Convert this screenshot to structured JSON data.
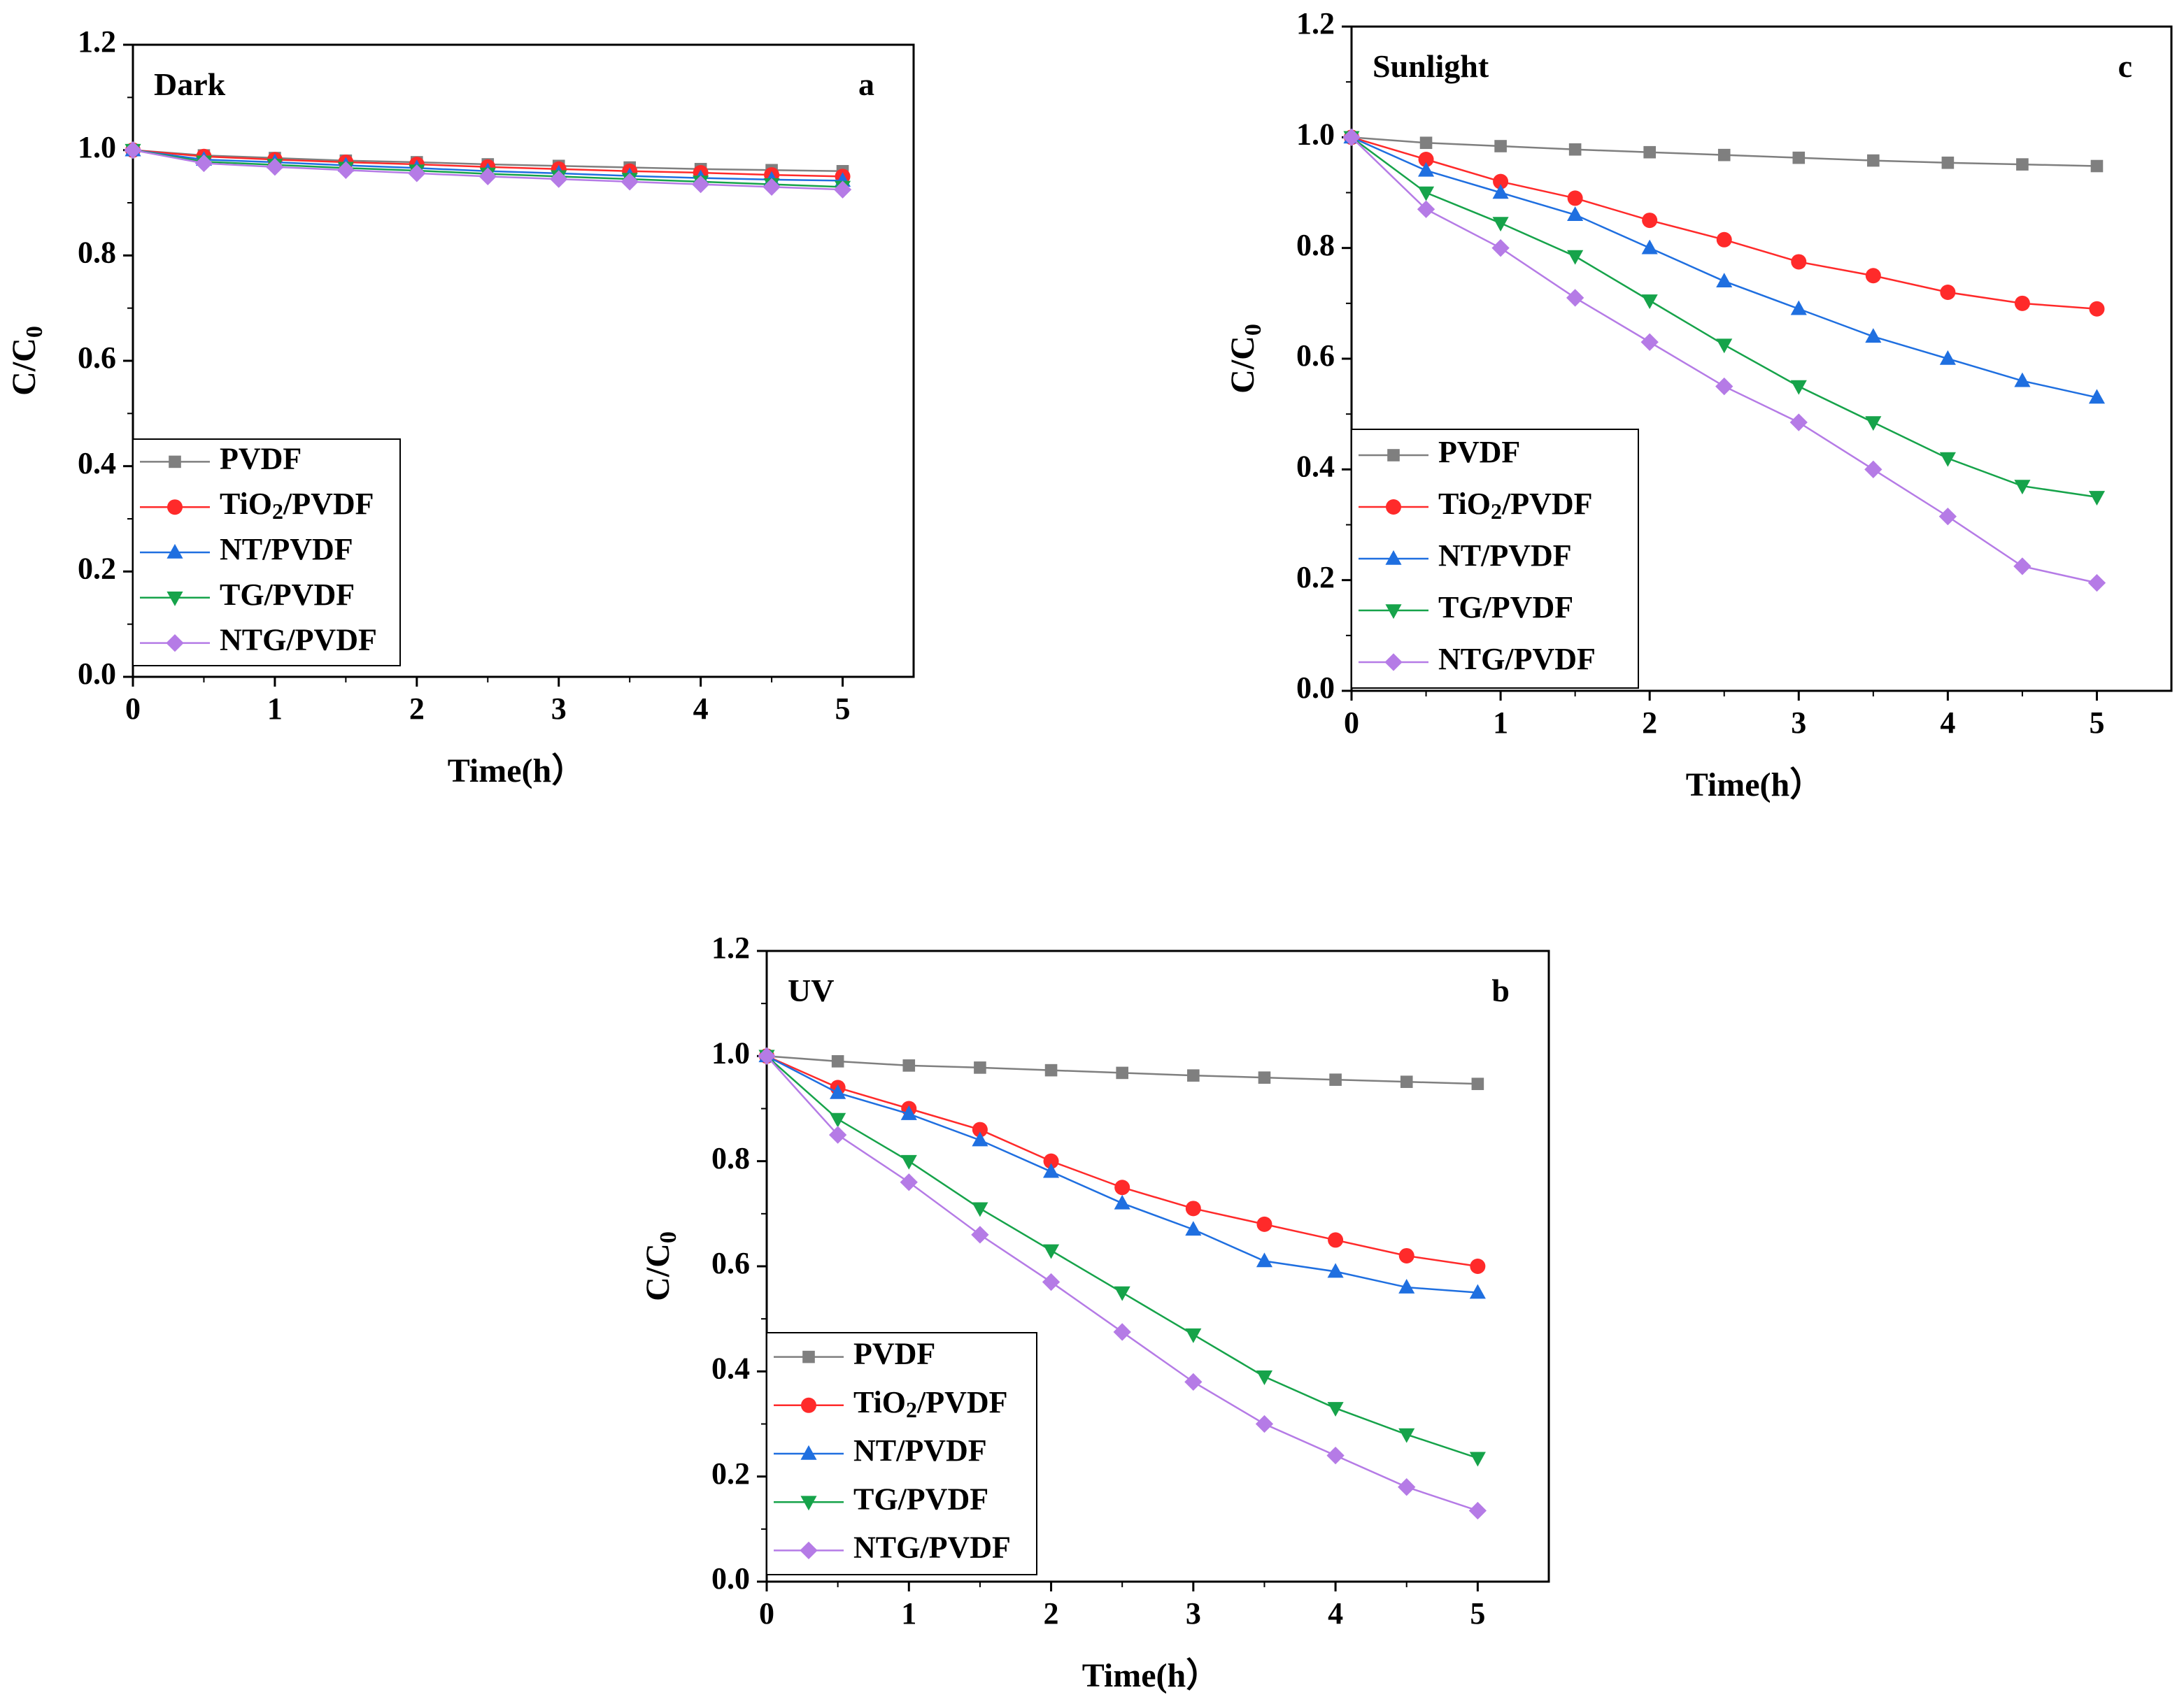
{
  "colors": {
    "PVDF": "#7f7f7f",
    "TiO2/PVDF": "#ff2a2a",
    "NT/PVDF": "#1f6fe0",
    "TG/PVDF": "#16a34a",
    "NTG/PVDF": "#b57be6"
  },
  "chart_data": [
    {
      "type": "line",
      "panel": "a",
      "title": "Dark",
      "xlabel": "Time(h）",
      "ylabel": "C/C0",
      "xlim": [
        0,
        5.5
      ],
      "ylim": [
        0,
        1.2
      ],
      "xticks": [
        0,
        1,
        2,
        3,
        4,
        5
      ],
      "yticks": [
        0.0,
        0.2,
        0.4,
        0.6,
        0.8,
        1.0,
        1.2
      ],
      "legend_position": "bottom-left",
      "x": [
        0,
        0.5,
        1,
        1.5,
        2,
        2.5,
        3,
        3.5,
        4,
        4.5,
        5
      ],
      "series": [
        {
          "name": "PVDF",
          "marker": "square",
          "values": [
            1.0,
            0.99,
            0.985,
            0.98,
            0.977,
            0.973,
            0.97,
            0.967,
            0.964,
            0.962,
            0.96
          ]
        },
        {
          "name": "TiO2/PVDF",
          "marker": "circle",
          "values": [
            1.0,
            0.988,
            0.982,
            0.977,
            0.973,
            0.968,
            0.964,
            0.96,
            0.957,
            0.953,
            0.95
          ]
        },
        {
          "name": "NT/PVDF",
          "marker": "triangle-up",
          "values": [
            1.0,
            0.982,
            0.977,
            0.971,
            0.966,
            0.96,
            0.956,
            0.951,
            0.947,
            0.944,
            0.942
          ]
        },
        {
          "name": "TG/PVDF",
          "marker": "triangle-down",
          "values": [
            1.0,
            0.978,
            0.972,
            0.966,
            0.961,
            0.955,
            0.95,
            0.945,
            0.94,
            0.935,
            0.93
          ]
        },
        {
          "name": "NTG/PVDF",
          "marker": "diamond",
          "values": [
            1.0,
            0.975,
            0.968,
            0.962,
            0.956,
            0.95,
            0.945,
            0.94,
            0.935,
            0.93,
            0.925
          ]
        }
      ]
    },
    {
      "type": "line",
      "panel": "c",
      "title": "Sunlight",
      "xlabel": "Time(h）",
      "ylabel": "C/C0",
      "xlim": [
        0,
        5.5
      ],
      "ylim": [
        0,
        1.2
      ],
      "xticks": [
        0,
        1,
        2,
        3,
        4,
        5
      ],
      "yticks": [
        0.0,
        0.2,
        0.4,
        0.6,
        0.8,
        1.0,
        1.2
      ],
      "legend_position": "bottom-left",
      "x": [
        0,
        0.5,
        1,
        1.5,
        2,
        2.5,
        3,
        3.5,
        4,
        4.5,
        5
      ],
      "series": [
        {
          "name": "PVDF",
          "marker": "square",
          "values": [
            1.0,
            0.99,
            0.984,
            0.978,
            0.973,
            0.968,
            0.963,
            0.958,
            0.954,
            0.951,
            0.948
          ]
        },
        {
          "name": "TiO2/PVDF",
          "marker": "circle",
          "values": [
            1.0,
            0.96,
            0.92,
            0.89,
            0.85,
            0.815,
            0.775,
            0.75,
            0.72,
            0.7,
            0.69
          ]
        },
        {
          "name": "NT/PVDF",
          "marker": "triangle-up",
          "values": [
            1.0,
            0.94,
            0.9,
            0.86,
            0.8,
            0.74,
            0.69,
            0.64,
            0.6,
            0.56,
            0.53
          ]
        },
        {
          "name": "TG/PVDF",
          "marker": "triangle-down",
          "values": [
            1.0,
            0.9,
            0.845,
            0.785,
            0.705,
            0.625,
            0.55,
            0.485,
            0.42,
            0.37,
            0.35
          ]
        },
        {
          "name": "NTG/PVDF",
          "marker": "diamond",
          "values": [
            1.0,
            0.87,
            0.8,
            0.71,
            0.63,
            0.55,
            0.485,
            0.4,
            0.315,
            0.225,
            0.195
          ]
        }
      ]
    },
    {
      "type": "line",
      "panel": "b",
      "title": "UV",
      "xlabel": "Time(h）",
      "ylabel": "C/C0",
      "xlim": [
        0,
        5.5
      ],
      "ylim": [
        0,
        1.2
      ],
      "xticks": [
        0,
        1,
        2,
        3,
        4,
        5
      ],
      "yticks": [
        0.0,
        0.2,
        0.4,
        0.6,
        0.8,
        1.0,
        1.2
      ],
      "legend_position": "bottom-left",
      "x": [
        0,
        0.5,
        1,
        1.5,
        2,
        2.5,
        3,
        3.5,
        4,
        4.5,
        5
      ],
      "series": [
        {
          "name": "PVDF",
          "marker": "square",
          "values": [
            1.0,
            0.99,
            0.982,
            0.978,
            0.973,
            0.968,
            0.963,
            0.959,
            0.955,
            0.951,
            0.947
          ]
        },
        {
          "name": "TiO2/PVDF",
          "marker": "circle",
          "values": [
            1.0,
            0.94,
            0.9,
            0.86,
            0.8,
            0.75,
            0.71,
            0.68,
            0.65,
            0.62,
            0.6
          ]
        },
        {
          "name": "NT/PVDF",
          "marker": "triangle-up",
          "values": [
            1.0,
            0.93,
            0.89,
            0.84,
            0.78,
            0.72,
            0.67,
            0.61,
            0.59,
            0.56,
            0.55
          ]
        },
        {
          "name": "TG/PVDF",
          "marker": "triangle-down",
          "values": [
            1.0,
            0.88,
            0.8,
            0.71,
            0.63,
            0.55,
            0.47,
            0.39,
            0.33,
            0.28,
            0.235
          ]
        },
        {
          "name": "NTG/PVDF",
          "marker": "diamond",
          "values": [
            1.0,
            0.85,
            0.76,
            0.66,
            0.57,
            0.475,
            0.38,
            0.3,
            0.24,
            0.18,
            0.135
          ]
        }
      ]
    }
  ]
}
